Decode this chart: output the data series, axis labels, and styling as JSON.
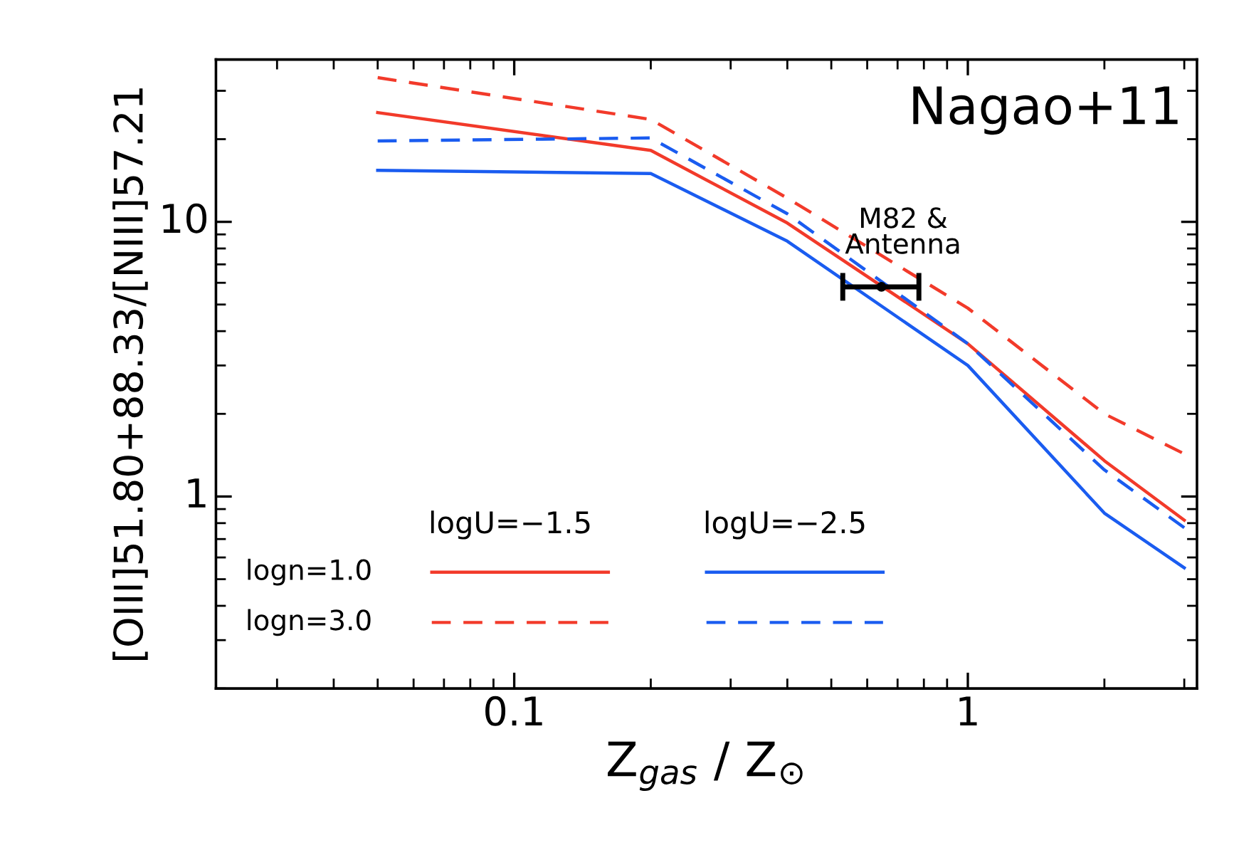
{
  "chart_data": {
    "type": "line",
    "xlabel": "Z$_{gas}$ / Z$_{⊙}$",
    "ylabel": "[OIII]51.80+88.33/[NIII]57.21",
    "x": [
      0.05,
      0.2,
      0.4,
      1,
      2,
      3
    ],
    "series": [
      {
        "color": "#f23a2a",
        "line_style": "solid",
        "values": [
          25,
          18.2,
          9.9,
          3.6,
          1.35,
          0.82
        ]
      },
      {
        "color": "#f23a2a",
        "line_style": "dashed",
        "values": [
          33.5,
          23.6,
          12.2,
          4.85,
          2.0,
          1.43
        ]
      },
      {
        "color": "#1a5cf0",
        "line_style": "solid",
        "values": [
          15.4,
          15,
          8.5,
          3.0,
          0.87,
          0.55
        ]
      },
      {
        "color": "#1a5cf0",
        "line_style": "dashed",
        "values": [
          19.7,
          20.2,
          10.7,
          3.6,
          1.25,
          0.77
        ]
      },
      {
        "type": "scatter",
        "color": "#000000",
        "marker": "circle",
        "x": [
          0.645
        ],
        "values": [
          5.8
        ],
        "xerrors": [
          [
            0.53,
            0.78
          ]
        ]
      }
    ],
    "annotations": [
      "Nagao+11",
      {
        "text": "M82 &\nAntenna",
        "x": 0.72,
        "y": 7.3
      },
      "logU=−1.5",
      "logU=−2.5",
      "logn=1.0",
      "logn=3.0"
    ],
    "log": "xy",
    "xlim": [
      0.022,
      3.2
    ],
    "ylim": [
      0.2,
      39
    ],
    "xticks": [
      0.1,
      1
    ],
    "yticks": [
      1,
      10
    ],
    "grid": false
  }
}
